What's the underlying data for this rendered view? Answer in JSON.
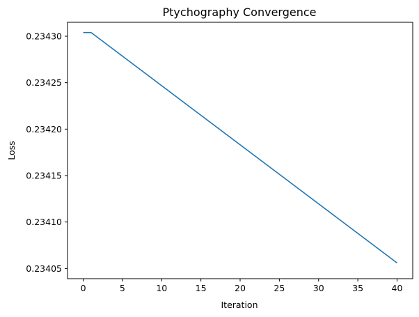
{
  "chart_data": {
    "type": "line",
    "title": "Ptychography Convergence",
    "xlabel": "Iteration",
    "ylabel": "Loss",
    "xlim": [
      -2,
      42
    ],
    "ylim": [
      0.234039,
      0.234315
    ],
    "xticks": [
      0,
      5,
      10,
      15,
      20,
      25,
      30,
      35,
      40
    ],
    "yticks": [
      0.23405,
      0.2341,
      0.23415,
      0.2342,
      0.23425,
      0.2343
    ],
    "xtick_labels": [
      "0",
      "5",
      "10",
      "15",
      "20",
      "25",
      "30",
      "35",
      "40"
    ],
    "ytick_labels": [
      "0.23405",
      "0.23410",
      "0.23415",
      "0.23420",
      "0.23425",
      "0.23430"
    ],
    "grid": false,
    "series": [
      {
        "color": "#1f77b4",
        "x": [
          0,
          1,
          40
        ],
        "y": [
          0.234304,
          0.234304,
          0.234056
        ]
      }
    ]
  }
}
